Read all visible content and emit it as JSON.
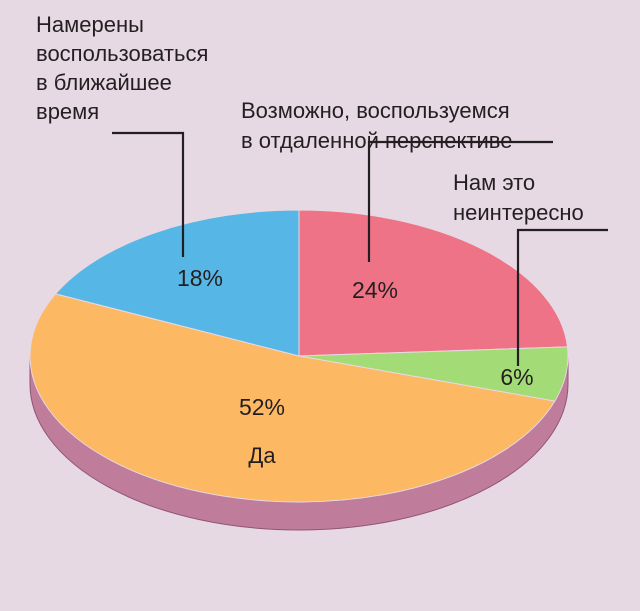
{
  "chart_data": {
    "type": "pie",
    "style": "3d",
    "start_angle_deg": 90,
    "direction": "clockwise",
    "title": "",
    "slices": [
      {
        "callout": [
          "Возможно, воспользуемся",
          "в отдаленной перспективе"
        ],
        "value": 24,
        "label": "24%",
        "color": "#ef7386"
      },
      {
        "callout": [
          "Нам это",
          "неинтересно"
        ],
        "value": 6,
        "label": "6%",
        "color": "#a3db76"
      },
      {
        "callout": [],
        "value": 52,
        "label": "52%",
        "category": "Да",
        "color": "#fdb864"
      },
      {
        "callout": [
          "Намерены",
          "воспользоваться",
          "в ближайшее",
          "время"
        ],
        "value": 18,
        "label": "18%",
        "color": "#56b7e6"
      }
    ],
    "side_color": "#c07d9b",
    "background": "#e7d9e4"
  }
}
